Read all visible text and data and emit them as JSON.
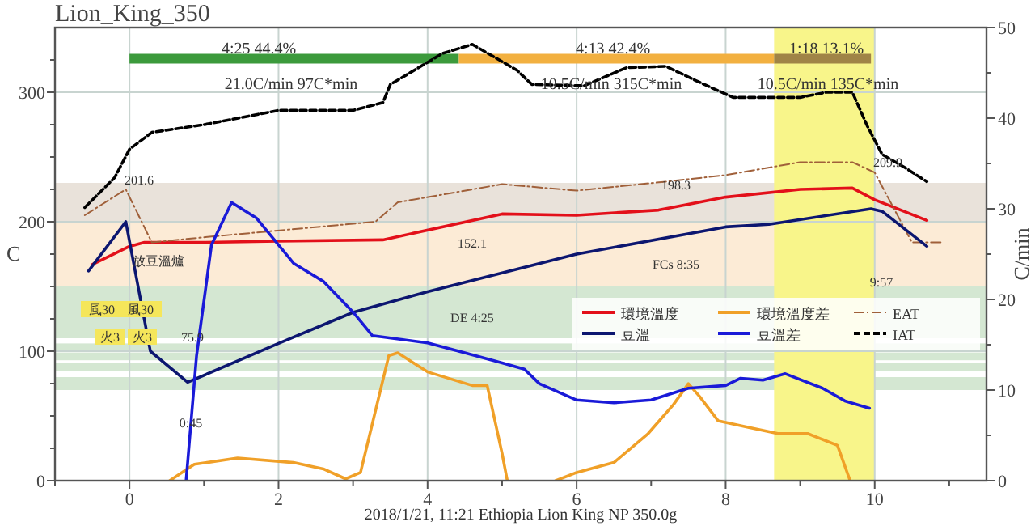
{
  "chart_data": {
    "type": "line",
    "title": "Lion_King_350",
    "ylabel": "C",
    "y2label": "C/min",
    "xlim": [
      -1,
      11.5
    ],
    "ylim": [
      0,
      350
    ],
    "y2lim": [
      0,
      50
    ],
    "xticks": [
      {
        "value": -1,
        "label": null
      },
      0,
      {
        "value": 1,
        "label": null
      },
      2,
      {
        "value": 3,
        "label": null
      },
      4,
      {
        "value": 5,
        "label": null
      },
      6,
      {
        "value": 7,
        "label": null
      },
      8,
      {
        "value": 9,
        "label": null
      },
      10,
      {
        "value": 11,
        "label": null
      }
    ],
    "yticks": [
      0,
      {
        "value": 25,
        "label": null
      },
      {
        "value": 50,
        "label": null
      },
      {
        "value": 75,
        "label": null
      },
      100,
      {
        "value": 125,
        "label": null
      },
      {
        "value": 150,
        "label": null
      },
      {
        "value": 175,
        "label": null
      },
      200,
      {
        "value": 225,
        "label": null
      },
      {
        "value": 250,
        "label": null
      },
      {
        "value": 275,
        "label": null
      },
      300,
      {
        "value": 325,
        "label": null
      }
    ],
    "y2ticks": [
      0,
      {
        "value": 5,
        "label": null
      },
      10,
      {
        "value": 15,
        "label": null
      },
      20,
      {
        "value": 25,
        "label": null
      },
      30,
      {
        "value": 35,
        "label": null
      },
      40,
      {
        "value": 45,
        "label": null
      },
      50
    ],
    "grid": true,
    "legend": "right",
    "bands": [
      {
        "axis": "y",
        "from": 200,
        "to": 230,
        "color": "#e9e2da"
      },
      {
        "axis": "y",
        "from": 150,
        "to": 200,
        "color": "#fcebd6"
      },
      {
        "axis": "y",
        "from": 110,
        "to": 150,
        "color": "#d4e7d2"
      },
      {
        "axis": "y",
        "from": 101,
        "to": 106,
        "color": "#d4e7d2"
      },
      {
        "axis": "y",
        "from": 93,
        "to": 99,
        "color": "#d4e7d2"
      },
      {
        "axis": "y",
        "from": 85,
        "to": 91,
        "color": "#d4e7d2"
      },
      {
        "axis": "y",
        "from": 70,
        "to": 80,
        "color": "#d4e7d2"
      },
      {
        "axis": "x",
        "from": 8.65,
        "to": 10.0,
        "color": "#f8f58a"
      }
    ],
    "series": [
      {
        "type": "line",
        "color": "#3c9a3c",
        "x": [
          0,
          4.42
        ],
        "values": [
          326,
          326
        ]
      },
      {
        "type": "line",
        "color": "#f2b040",
        "x": [
          4.42,
          8.65
        ],
        "values": [
          326,
          326
        ]
      },
      {
        "type": "line",
        "color": "#a08446",
        "x": [
          8.65,
          9.95
        ],
        "values": [
          326,
          326
        ]
      },
      {
        "name": "環境溫度",
        "color": "#e3101a",
        "x": [
          -0.5,
          0.0,
          0.2,
          1.0,
          2.0,
          3.4,
          5.0,
          6.0,
          7.1,
          8.0,
          9.0,
          9.7,
          10.0,
          10.7
        ],
        "values": [
          167,
          181,
          184,
          184,
          185,
          186,
          206,
          205,
          209,
          219,
          225,
          226,
          217,
          201
        ]
      },
      {
        "name": "環境溫度差",
        "color": "#f0a028",
        "axis": "y2",
        "x": [
          0.54,
          0.87,
          1.45,
          2.2,
          2.6,
          2.9,
          3.1,
          3.48,
          3.6,
          4.0,
          4.6,
          4.8,
          5.0,
          5.07,
          null,
          5.72,
          6.0,
          6.5,
          6.96,
          7.3,
          7.5,
          7.65,
          7.9,
          8.3,
          8.7,
          9.1,
          9.5,
          9.67
        ],
        "values": [
          0,
          1.8,
          2.5,
          2.0,
          1.3,
          0.2,
          0.9,
          13.8,
          14.1,
          12,
          10.5,
          10.5,
          3,
          0,
          null,
          0,
          0.9,
          2,
          5.2,
          8.4,
          10.7,
          9.3,
          6.6,
          5.9,
          5.2,
          5.2,
          3.9,
          0
        ]
      },
      {
        "name": "EAT",
        "color": "#a0603a",
        "line_style": "dashdot",
        "x": [
          -0.6,
          -0.05,
          0.3,
          1.0,
          3.3,
          3.6,
          5.0,
          6.0,
          7.2,
          8.0,
          9.0,
          9.7,
          10.0,
          10.5,
          10.9
        ],
        "values": [
          205,
          225,
          184,
          188,
          200,
          215,
          229,
          224,
          231,
          236,
          246,
          246,
          238,
          184,
          184
        ]
      },
      {
        "name": "豆溫",
        "color": "#0c1670",
        "x": [
          -0.55,
          -0.05,
          0.28,
          0.78,
          2.0,
          3.0,
          4.0,
          4.42,
          6.0,
          8.0,
          8.58,
          9.95,
          10.1,
          10.7
        ],
        "values": [
          162,
          200,
          100,
          76,
          106,
          130,
          146,
          152,
          175,
          196,
          198,
          210,
          208,
          181
        ]
      },
      {
        "name": "豆溫差",
        "color": "#1a1ad8",
        "axis": "y2",
        "x": [
          0.76,
          0.9,
          1.1,
          1.37,
          1.7,
          2.2,
          2.6,
          3.0,
          3.26,
          4.0,
          4.5,
          5.0,
          5.3,
          5.5,
          6.0,
          6.5,
          7.0,
          7.5,
          8.0,
          8.2,
          8.5,
          8.8,
          9.3,
          9.6,
          9.93
        ],
        "values": [
          0,
          13.8,
          26,
          30.7,
          29,
          24,
          22,
          18.6,
          16,
          15.2,
          14.1,
          13,
          12.3,
          10.7,
          8.9,
          8.6,
          8.9,
          10.2,
          10.5,
          11.3,
          11.1,
          11.8,
          10.2,
          8.8,
          8
        ]
      },
      {
        "name": "IAT",
        "color": "#000000",
        "line_style": "dashed",
        "x": [
          -0.6,
          -0.2,
          0.0,
          0.3,
          1.0,
          2.0,
          3.0,
          3.4,
          3.5,
          4.2,
          4.6,
          5.2,
          5.4,
          6.1,
          6.67,
          7.2,
          7.6,
          8.1,
          9.0,
          9.35,
          9.7,
          9.9,
          10.1,
          10.4,
          10.7
        ],
        "values": [
          211,
          234,
          256,
          269,
          275,
          286,
          286,
          292,
          306,
          330,
          337,
          317,
          306,
          305,
          319,
          320,
          309,
          296,
          296,
          300,
          300,
          274,
          252,
          242,
          231
        ]
      }
    ],
    "annotations": [
      "4:25  44.4%",
      "21.0C/min  97C*min",
      "4:13  42.4%",
      "10.5C/min  315C*min",
      "1:18  13.1%",
      "10.5C/min  135C*min",
      "201.6",
      "放豆溫爐",
      "75.9",
      "0:45",
      "152.1",
      "DE 4:25",
      "198.3",
      "FCs 8:35",
      "209.9",
      "9:57",
      "風30",
      "風30",
      "火3",
      "火3",
      "2018/1/21, 11:21   Ethiopia Lion King NP   350.0g"
    ]
  }
}
